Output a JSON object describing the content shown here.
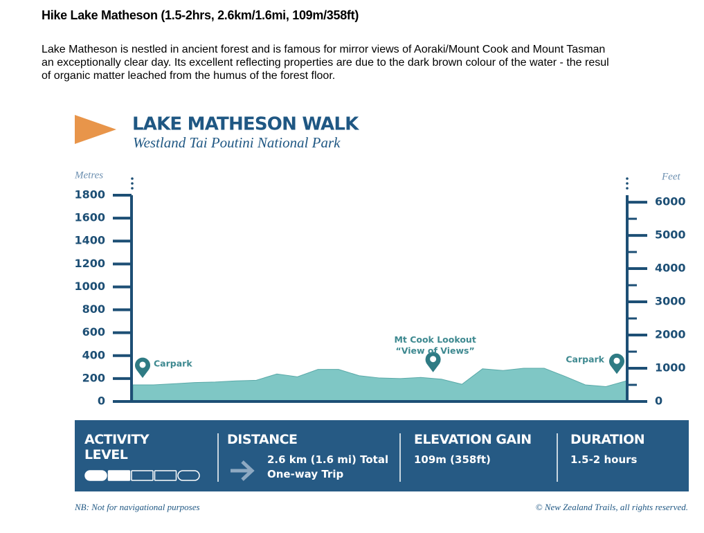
{
  "page": {
    "heading": "Hike Lake Matheson (1.5-2hrs, 2.6km/1.6mi, 109m/358ft)",
    "description": [
      "Lake Matheson is nestled in ancient forest and is famous for mirror views of Aoraki/Mount Cook and Mount Tasman",
      "an exceptionally clear day. Its excellent reflecting properties are due to the dark brown colour of the water - the resul",
      "of organic matter leached from the humus of the forest floor."
    ]
  },
  "chart_data": {
    "type": "area",
    "title": "LAKE MATHESON WALK",
    "subtitle": "Westland Tai Poutini National Park",
    "ylabel": "Metres",
    "y2label": "Feet",
    "categories": [
      "Carpark",
      null,
      null,
      null,
      null,
      null,
      null,
      null,
      null,
      null,
      null,
      null,
      null,
      null,
      null,
      "Mt Cook Lookout",
      null,
      null,
      null,
      null,
      null,
      null,
      null,
      null,
      "Carpark"
    ],
    "annotation": "“View of Views”",
    "values": [
      145,
      145,
      155,
      165,
      170,
      180,
      185,
      240,
      215,
      280,
      280,
      225,
      205,
      200,
      210,
      195,
      150,
      285,
      270,
      290,
      290,
      220,
      145,
      130,
      180
    ],
    "color": "#7fc7c5",
    "ylim": [
      0,
      1800
    ],
    "yticks": [
      0,
      200,
      400,
      600,
      800,
      1000,
      1200,
      1400,
      1600,
      1800
    ],
    "y2lim": [
      0,
      6210
    ],
    "y2ticks": [
      0,
      1000,
      2000,
      3000,
      4000,
      5000,
      6000
    ],
    "y2minorticks": [
      500,
      1500,
      2500,
      3500,
      4500,
      5500
    ]
  },
  "info": {
    "activity_level": {
      "label": "ACTIVITY LEVEL",
      "value": 2,
      "max": 5
    },
    "distance": {
      "label": "DISTANCE",
      "text": [
        "2.6 km (1.6 mi) Total",
        "One-way Trip"
      ]
    },
    "elevation_gain": {
      "label": "ELEVATION GAIN",
      "text": "109m (358ft)"
    },
    "duration": {
      "label": "DURATION",
      "text": "1.5-2 hours"
    }
  },
  "footer": {
    "left": "NB: Not for navigational purposes",
    "right": "© New Zealand Trails, all rights reserved."
  }
}
